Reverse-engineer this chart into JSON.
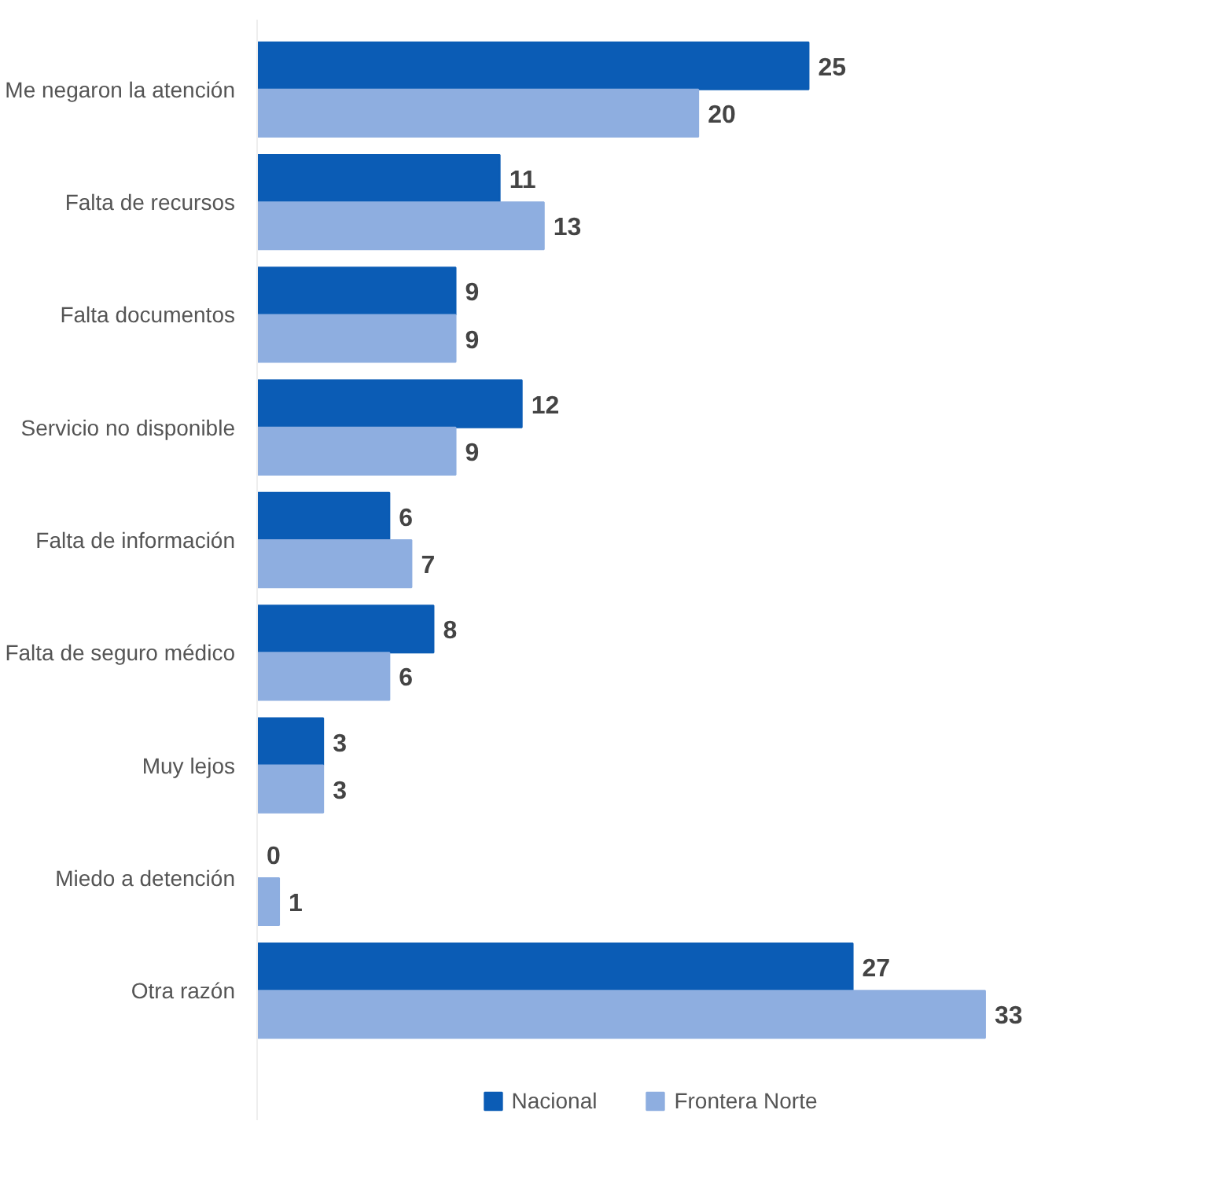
{
  "chart_data": {
    "type": "bar",
    "orientation": "horizontal",
    "categories": [
      "Me negaron la atención",
      "Falta de recursos",
      "Falta documentos",
      "Servicio no disponible",
      "Falta de información",
      "Falta de seguro médico",
      "Muy lejos",
      "Miedo a detención",
      "Otra razón"
    ],
    "series": [
      {
        "name": "Nacional",
        "color": "#0b5cb5",
        "values": [
          25,
          11,
          9,
          12,
          6,
          8,
          3,
          0,
          27
        ]
      },
      {
        "name": "Frontera Norte",
        "color": "#8eaee0",
        "values": [
          20,
          13,
          9,
          9,
          7,
          6,
          3,
          1,
          33
        ]
      }
    ],
    "data_labels": true,
    "legend": "bottom",
    "grid": false
  }
}
